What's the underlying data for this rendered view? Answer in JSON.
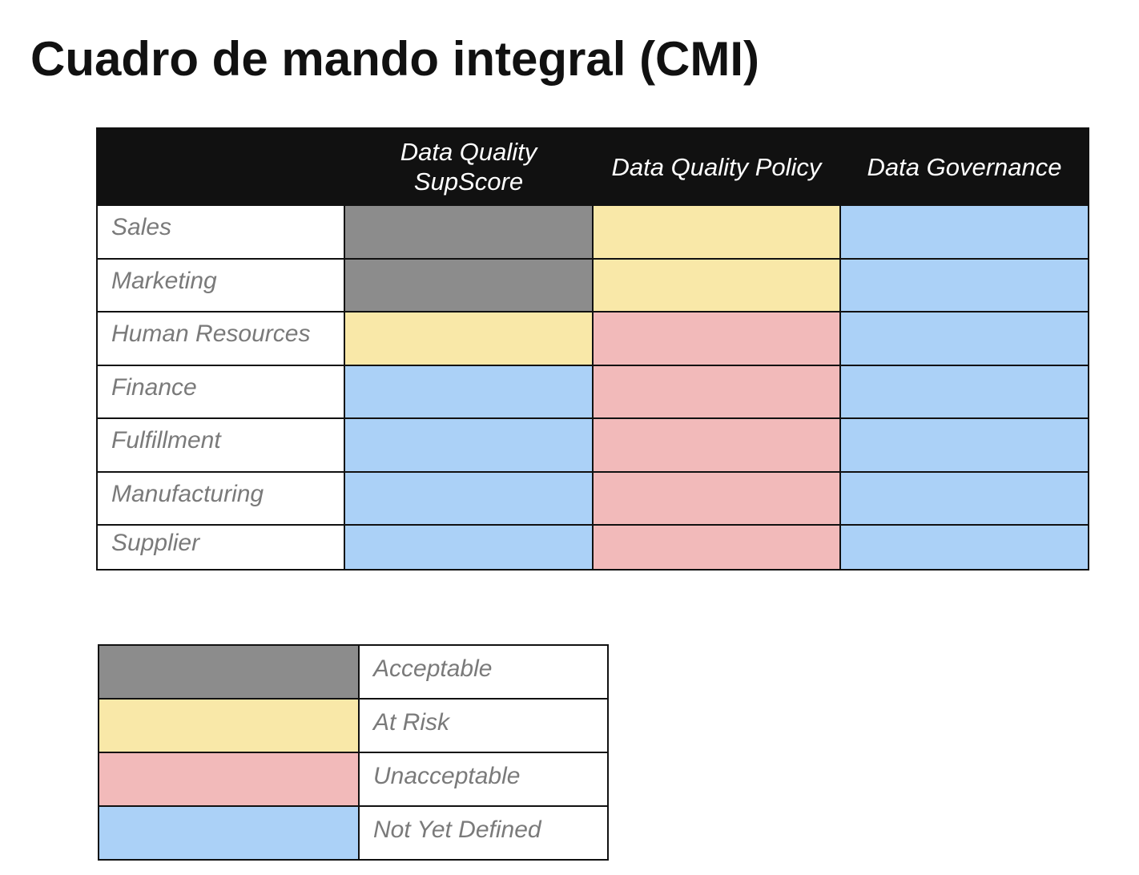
{
  "title": "Cuadro de mando integral (CMI)",
  "status_colors": {
    "acceptable": "#8c8c8c",
    "at_risk": "#f9e8a8",
    "unacceptable": "#f2baba",
    "not_yet_defined": "#abd1f7"
  },
  "scorecard": {
    "columns": [
      {
        "label_line1": "Data Quality",
        "label_line2": "SupScore"
      },
      {
        "label_line1": "Data Quality Policy",
        "label_line2": ""
      },
      {
        "label_line1": "Data Governance",
        "label_line2": ""
      }
    ],
    "rows": [
      {
        "label": "Sales",
        "statuses": [
          "acceptable",
          "at_risk",
          "not_yet_defined"
        ]
      },
      {
        "label": "Marketing",
        "statuses": [
          "acceptable",
          "at_risk",
          "not_yet_defined"
        ]
      },
      {
        "label": "Human Resources",
        "statuses": [
          "at_risk",
          "unacceptable",
          "not_yet_defined"
        ]
      },
      {
        "label": "Finance",
        "statuses": [
          "not_yet_defined",
          "unacceptable",
          "not_yet_defined"
        ]
      },
      {
        "label": "Fulfillment",
        "statuses": [
          "not_yet_defined",
          "unacceptable",
          "not_yet_defined"
        ]
      },
      {
        "label": "Manufacturing",
        "statuses": [
          "not_yet_defined",
          "unacceptable",
          "not_yet_defined"
        ]
      },
      {
        "label": "Supplier",
        "statuses": [
          "not_yet_defined",
          "unacceptable",
          "not_yet_defined"
        ]
      }
    ]
  },
  "legend": {
    "items": [
      {
        "status": "acceptable",
        "label": "Acceptable"
      },
      {
        "status": "at_risk",
        "label": "At Risk"
      },
      {
        "status": "unacceptable",
        "label": "Unacceptable"
      },
      {
        "status": "not_yet_defined",
        "label": "Not Yet Defined"
      }
    ]
  }
}
